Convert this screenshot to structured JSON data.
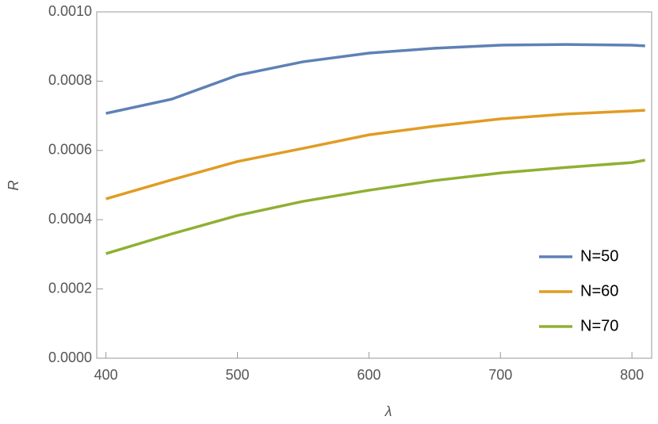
{
  "chart_data": {
    "type": "line",
    "xlabel": "λ",
    "ylabel": "R",
    "x": [
      400,
      450,
      500,
      550,
      600,
      650,
      700,
      750,
      800,
      810
    ],
    "series": [
      {
        "name": "N=50",
        "color": "#5e81b5",
        "values": [
          0.000707,
          0.000748,
          0.000817,
          0.000856,
          0.000881,
          0.000895,
          0.000904,
          0.000906,
          0.000904,
          0.000902
        ]
      },
      {
        "name": "N=60",
        "color": "#e19c24",
        "values": [
          0.00046,
          0.000515,
          0.000568,
          0.000606,
          0.000645,
          0.00067,
          0.000691,
          0.000705,
          0.000714,
          0.000716
        ]
      },
      {
        "name": "N=70",
        "color": "#8fb032",
        "values": [
          0.000302,
          0.000359,
          0.000412,
          0.000453,
          0.000485,
          0.000513,
          0.000535,
          0.000551,
          0.000565,
          0.000572
        ]
      }
    ],
    "xlim": [
      393,
      815
    ],
    "ylim": [
      0,
      0.001
    ],
    "xticks": [
      400,
      500,
      600,
      700,
      800
    ],
    "yticks": [
      {
        "value": 0,
        "label": "0.0000"
      },
      0.0002,
      0.0004,
      0.0006,
      0.0008,
      {
        "value": 0.001,
        "label": "0.0010"
      }
    ],
    "legend": "bottom-right"
  }
}
